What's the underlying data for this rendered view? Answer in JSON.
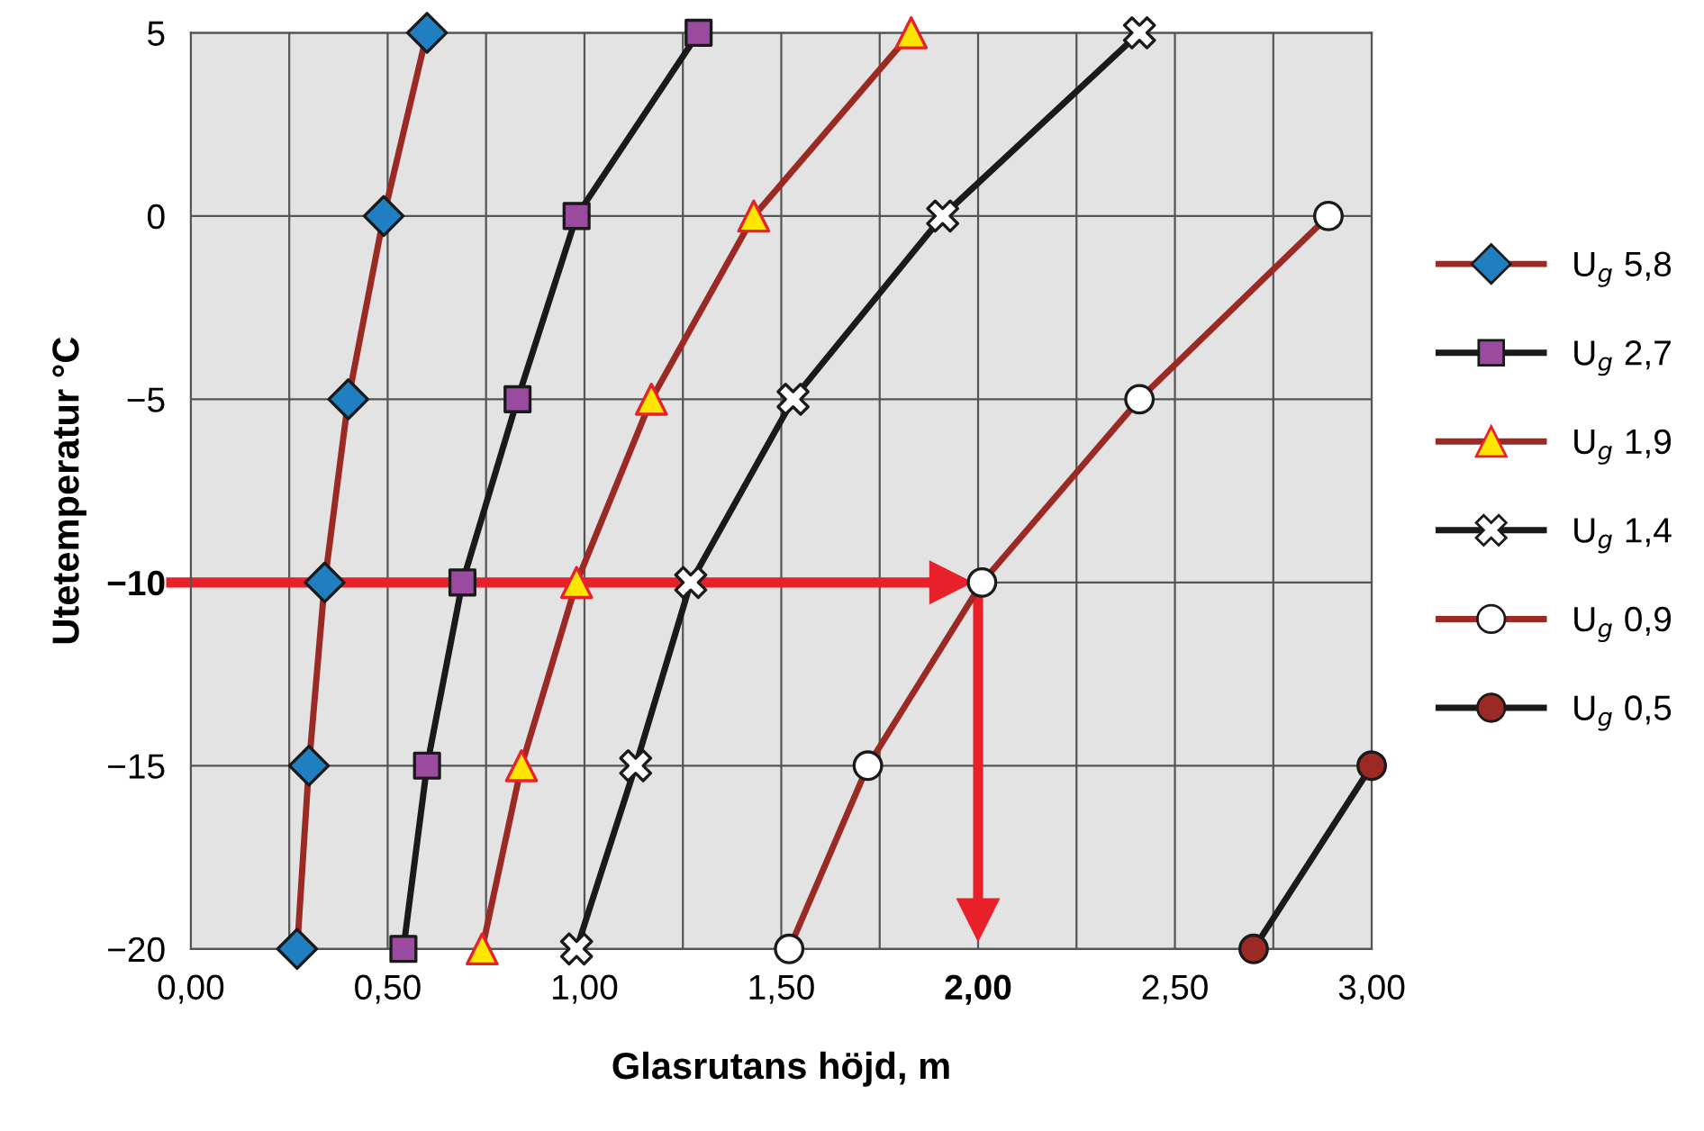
{
  "chart_data": {
    "type": "line",
    "xlabel": "Glasrutans höjd, m",
    "ylabel": "Utetemperatur °C",
    "xlim": [
      0,
      3
    ],
    "ylim": [
      -20,
      5
    ],
    "xticks": [
      {
        "value": 0,
        "label": "0,00"
      },
      {
        "value": 0.25,
        "label": null
      },
      {
        "value": 0.5,
        "label": "0,50"
      },
      {
        "value": 0.75,
        "label": null
      },
      {
        "value": 1,
        "label": "1,00"
      },
      {
        "value": 1.25,
        "label": null
      },
      {
        "value": 1.5,
        "label": "1,50"
      },
      {
        "value": 1.75,
        "label": null
      },
      {
        "value": 2,
        "label": "2,00"
      },
      {
        "value": 2.25,
        "label": null
      },
      {
        "value": 2.5,
        "label": "2,50"
      },
      {
        "value": 2.75,
        "label": null
      },
      {
        "value": 3,
        "label": "3,00"
      }
    ],
    "yticks": [
      {
        "value": -20,
        "label": "−20"
      },
      {
        "value": -15,
        "label": "−15"
      },
      {
        "value": -10,
        "label": "−10"
      },
      {
        "value": -5,
        "label": "−5"
      },
      0,
      5
    ],
    "grid": true,
    "legend": "right",
    "ref_lines": [
      {
        "axis": "y",
        "value": -10,
        "color": "#e8202a"
      },
      {
        "axis": "x",
        "value": 2,
        "color": "#e8202a"
      }
    ],
    "series": [
      {
        "name": "U$_{g}$ 5,8",
        "color": "#9b2a25",
        "marker": "diamond",
        "colors": [
          "#1f7fc0",
          "#1f7fc0",
          "#1f7fc0",
          "#1f7fc0",
          "#1f7fc0",
          "#1f7fc0"
        ],
        "x": [
          0.6,
          0.49,
          0.4,
          0.34,
          0.3,
          0.27
        ],
        "values": [
          5,
          0,
          -5,
          -10,
          -15,
          -20
        ]
      },
      {
        "name": "U$_{g}$ 2,7",
        "color": "#1a1a1a",
        "marker": "square",
        "colors": [
          "#9a4a9f",
          "#9a4a9f",
          "#9a4a9f",
          "#9a4a9f",
          "#9a4a9f",
          "#9a4a9f"
        ],
        "x": [
          1.29,
          0.98,
          0.83,
          0.69,
          0.6,
          0.54
        ],
        "values": [
          5,
          0,
          -5,
          -10,
          -15,
          -20
        ]
      },
      {
        "name": "U$_{g}$ 1,9",
        "color": "#9b2a25",
        "marker": "triangle",
        "colors": [
          "#ffe600",
          "#ffe600",
          "#ffe600",
          "#ffe600",
          "#ffe600",
          "#ffe600"
        ],
        "x": [
          1.83,
          1.43,
          1.17,
          0.98,
          0.84,
          0.74
        ],
        "values": [
          5,
          0,
          -5,
          -10,
          -15,
          -20
        ]
      },
      {
        "name": "U$_{g}$ 1,4",
        "color": "#1a1a1a",
        "marker": "cross",
        "colors": [
          "#ffffff",
          "#ffffff",
          "#ffffff",
          "#ffffff",
          "#ffffff",
          "#ffffff"
        ],
        "x": [
          2.41,
          1.91,
          1.53,
          1.27,
          1.13,
          0.98
        ],
        "values": [
          5,
          0,
          -5,
          -10,
          -15,
          -20
        ]
      },
      {
        "name": "U$_{g}$ 0,9",
        "color": "#9b2a25",
        "marker": "circle",
        "colors": [
          "#ffffff",
          "#ffffff",
          "#ffffff",
          "#ffffff",
          "#ffffff"
        ],
        "x": [
          2.89,
          2.41,
          2.01,
          1.72,
          1.52
        ],
        "values": [
          0,
          -5,
          -10,
          -15,
          -20
        ]
      },
      {
        "name": "U$_{g}$ 0,5",
        "color": "#1a1a1a",
        "marker": "circle",
        "colors": [
          "#9b2a25",
          "#9b2a25"
        ],
        "x": [
          3.0,
          2.7
        ],
        "values": [
          -15,
          -20
        ]
      }
    ]
  }
}
